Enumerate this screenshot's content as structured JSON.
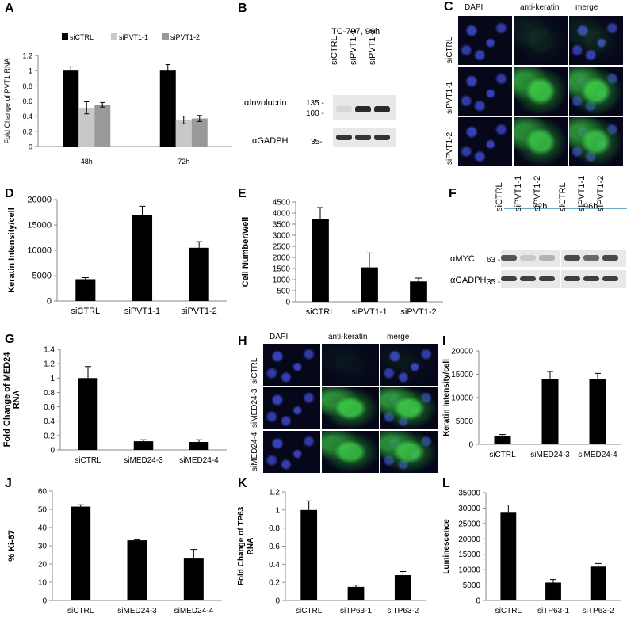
{
  "panel_labels": {
    "A": "A",
    "B": "B",
    "C": "C",
    "D": "D",
    "E": "E",
    "F": "F",
    "G": "G",
    "H": "H",
    "I": "I",
    "J": "J",
    "K": "K",
    "L": "L"
  },
  "chart_data": [
    {
      "id": "A",
      "type": "bar",
      "categories": [
        "48h",
        "72h"
      ],
      "series": [
        {
          "name": "siCTRL",
          "values": [
            1.0,
            1.0
          ],
          "errors": [
            0.05,
            0.08
          ],
          "color": "#000000"
        },
        {
          "name": "siPVT1-1",
          "values": [
            0.51,
            0.35
          ],
          "errors": [
            0.08,
            0.05
          ],
          "color": "#c8c8c8"
        },
        {
          "name": "siPVT1-2",
          "values": [
            0.55,
            0.37
          ],
          "errors": [
            0.03,
            0.04
          ],
          "color": "#999999"
        }
      ],
      "ylabel": "Fold Change of PVT1 RNA",
      "ylim": [
        0,
        1.2
      ],
      "yticks": [
        "0",
        "0.2",
        "0.4",
        "0.6",
        "0.8",
        "1",
        "1.2"
      ],
      "legend": "top"
    },
    {
      "id": "D",
      "type": "bar",
      "categories": [
        "siCTRL",
        "siPVT1-1",
        "siPVT1-2"
      ],
      "values": [
        4300,
        17000,
        10500
      ],
      "errors": [
        300,
        1700,
        1200
      ],
      "ylabel": "Keratin Intensity/cell",
      "ylim": [
        0,
        20000
      ],
      "yticks": [
        "0",
        "5000",
        "10000",
        "15000",
        "20000"
      ]
    },
    {
      "id": "E",
      "type": "bar",
      "categories": [
        "siCTRL",
        "siPVT1-1",
        "siPVT1-2"
      ],
      "values": [
        3750,
        1550,
        920
      ],
      "errors": [
        500,
        650,
        150
      ],
      "ylabel": "Cell Number/well",
      "ylim": [
        0,
        4500
      ],
      "yticks": [
        "0",
        "500",
        "1000",
        "1500",
        "2000",
        "2500",
        "3000",
        "3500",
        "4000",
        "4500"
      ]
    },
    {
      "id": "G",
      "type": "bar",
      "categories": [
        "siCTRL",
        "siMED24-3",
        "siMED24-4"
      ],
      "values": [
        1.0,
        0.12,
        0.11
      ],
      "errors": [
        0.16,
        0.02,
        0.03
      ],
      "ylabel": "Fold Change of MED24 RNA",
      "ylim": [
        0,
        1.4
      ],
      "yticks": [
        "0",
        "0.2",
        "0.4",
        "0.6",
        "0.8",
        "1",
        "1.2",
        "1.4"
      ]
    },
    {
      "id": "I",
      "type": "bar",
      "categories": [
        "siCTRL",
        "siMED24-3",
        "siMED24-4"
      ],
      "values": [
        1700,
        14000,
        14000
      ],
      "errors": [
        400,
        1600,
        1200
      ],
      "ylabel": "Keratin Intensity/cell",
      "ylim": [
        0,
        20000
      ],
      "yticks": [
        "0",
        "5000",
        "10000",
        "15000",
        "20000"
      ]
    },
    {
      "id": "J",
      "type": "bar",
      "categories": [
        "siCTRL",
        "siMED24-3",
        "siMED24-4"
      ],
      "values": [
        51.5,
        33,
        23
      ],
      "errors": [
        1,
        0.3,
        5
      ],
      "ylabel": "% Ki-67",
      "ylim": [
        0,
        60
      ],
      "yticks": [
        "0",
        "10",
        "20",
        "30",
        "40",
        "50",
        "60"
      ]
    },
    {
      "id": "K",
      "type": "bar",
      "categories": [
        "siCTRL",
        "siTP63-1",
        "siTP63-2"
      ],
      "values": [
        1.0,
        0.15,
        0.28
      ],
      "errors": [
        0.1,
        0.02,
        0.04
      ],
      "ylabel": "Fold Change of TP63 RNA",
      "ylim": [
        0,
        1.2
      ],
      "yticks": [
        "0",
        "0.2",
        "0.4",
        "0.6",
        "0.8",
        "1",
        "1.2"
      ]
    },
    {
      "id": "L",
      "type": "bar",
      "categories": [
        "siCTRL",
        "siTP63-1",
        "siTP63-2"
      ],
      "values": [
        28500,
        5800,
        11000
      ],
      "errors": [
        2500,
        1000,
        1000
      ],
      "ylabel": "Luminescence",
      "ylim": [
        0,
        35000
      ],
      "yticks": [
        "0",
        "5000",
        "10000",
        "15000",
        "20000",
        "25000",
        "30000",
        "35000"
      ]
    }
  ],
  "blot_B": {
    "title": "TC-797, 96h",
    "lanes": [
      "siCTRL",
      "siPVT1-1",
      "siPVT1-2"
    ],
    "rows": [
      {
        "label": "αInvolucrin",
        "markers": [
          "135 -",
          "100 -"
        ],
        "intensity": [
          0.08,
          0.9,
          0.9
        ]
      },
      {
        "label": "αGADPH",
        "markers": [
          "35-"
        ],
        "intensity": [
          0.85,
          0.85,
          0.85
        ]
      }
    ]
  },
  "blot_F": {
    "groups": [
      "72h",
      "96h"
    ],
    "lanes": [
      "siCTRL",
      "siPVT1-1",
      "siPVT1-2",
      "siCTRL",
      "siPVT1-1",
      "siPVT1-2"
    ],
    "rows": [
      {
        "label": "αMYC",
        "markers": [
          "63 -"
        ],
        "intensity": [
          0.7,
          0.15,
          0.25,
          0.75,
          0.6,
          0.75
        ]
      },
      {
        "label": "αGADPH",
        "markers": [
          "35 -"
        ],
        "intensity": [
          0.8,
          0.8,
          0.8,
          0.8,
          0.8,
          0.8
        ]
      }
    ]
  },
  "micro_C": {
    "columns": [
      "DAPI",
      "anti-keratin",
      "merge"
    ],
    "rows": [
      "siCTRL",
      "siPVT1-1",
      "siPVT1-2"
    ],
    "keratin_level": [
      0.12,
      0.9,
      0.85
    ]
  },
  "micro_H": {
    "columns": [
      "DAPI",
      "anti-keratin",
      "merge"
    ],
    "rows": [
      "siCTRL",
      "siMED24-3",
      "siMED24-4"
    ],
    "keratin_level": [
      0.05,
      0.9,
      0.85
    ]
  }
}
